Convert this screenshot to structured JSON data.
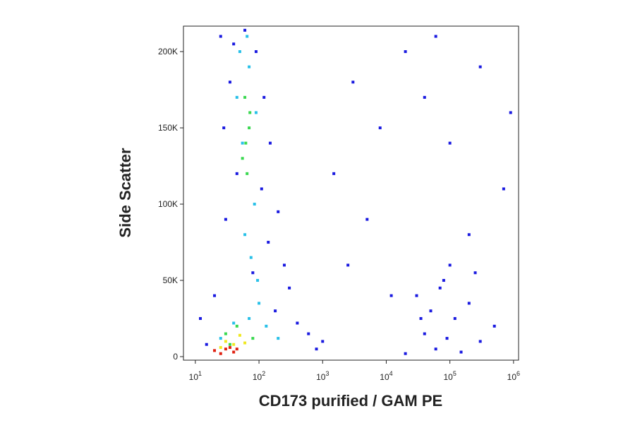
{
  "chart_data": {
    "type": "scatter",
    "x_label": "CD173 purified / GAM PE",
    "y_label": "Side Scatter",
    "x_scale": "log",
    "xlim": [
      6.5,
      1200000
    ],
    "ylim": [
      -2300,
      216700
    ],
    "xticks": [
      {
        "value": 10,
        "label": "10",
        "exponent": "1"
      },
      {
        "value": 100,
        "label": "10",
        "exponent": "2"
      },
      {
        "value": 1000,
        "label": "10",
        "exponent": "3"
      },
      {
        "value": 10000,
        "label": "10",
        "exponent": "4"
      },
      {
        "value": 100000,
        "label": "10",
        "exponent": "5"
      },
      {
        "value": 1000000,
        "label": "10",
        "exponent": "6"
      }
    ],
    "yticks": [
      0,
      {
        "value": 50000,
        "label": "50K"
      },
      {
        "value": 100000,
        "label": "100K"
      },
      {
        "value": 150000,
        "label": "150K"
      },
      {
        "value": 200000,
        "label": "200K"
      }
    ],
    "series": [
      {
        "color": "#1a1ae0",
        "x": [
          25,
          40,
          60,
          90,
          35,
          120,
          28,
          150,
          45,
          110,
          200,
          30,
          140,
          250,
          80,
          300,
          20,
          180,
          400,
          600,
          1000,
          12,
          15,
          800,
          3000,
          8000,
          20000,
          1500,
          5000,
          40000,
          100000,
          300000,
          700000,
          2500,
          12000,
          60000,
          200000,
          900000,
          30000,
          50000,
          80000,
          120000,
          200000,
          40000,
          100000,
          300000,
          60000,
          150000,
          20000,
          500000,
          70000,
          250000,
          35000,
          90000
        ],
        "values": [
          210000,
          205000,
          214000,
          200000,
          180000,
          170000,
          150000,
          140000,
          120000,
          110000,
          95000,
          90000,
          75000,
          60000,
          55000,
          45000,
          40000,
          30000,
          22000,
          15000,
          10000,
          25000,
          8000,
          5000,
          180000,
          150000,
          200000,
          120000,
          90000,
          170000,
          140000,
          190000,
          110000,
          60000,
          40000,
          210000,
          80000,
          160000,
          40000,
          30000,
          50000,
          25000,
          35000,
          15000,
          60000,
          10000,
          5000,
          3000,
          2000,
          20000,
          45000,
          55000,
          25000,
          12000
        ]
      },
      {
        "color": "#28c0e8",
        "x": [
          50,
          70,
          45,
          90,
          55,
          85,
          60,
          75,
          95,
          100,
          70,
          130,
          40,
          200,
          25,
          65
        ],
        "values": [
          200000,
          190000,
          170000,
          160000,
          140000,
          100000,
          80000,
          65000,
          50000,
          35000,
          25000,
          20000,
          22000,
          12000,
          12000,
          210000
        ]
      },
      {
        "color": "#3ad850",
        "x": [
          60,
          70,
          55,
          65,
          72,
          62,
          30,
          45,
          80,
          35
        ],
        "values": [
          170000,
          150000,
          130000,
          120000,
          160000,
          140000,
          15000,
          20000,
          12000,
          8000
        ]
      },
      {
        "color": "#f0e820",
        "x": [
          30,
          40,
          50,
          25,
          60
        ],
        "values": [
          10000,
          8000,
          14000,
          6000,
          9000
        ]
      },
      {
        "color": "#e02010",
        "x": [
          20,
          30,
          40,
          25,
          35,
          45
        ],
        "values": [
          4000,
          5000,
          3000,
          2000,
          6000,
          5000
        ]
      }
    ]
  }
}
